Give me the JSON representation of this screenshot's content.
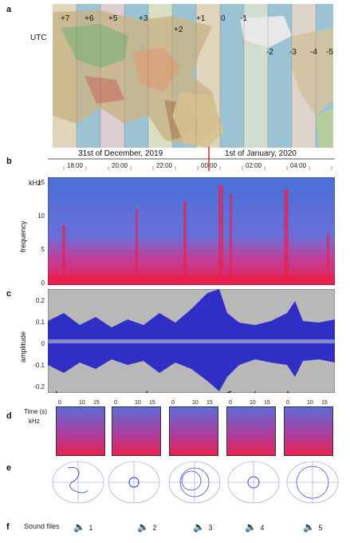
{
  "panels": {
    "a": "a",
    "b": "b",
    "c": "c",
    "d": "d",
    "e": "e",
    "f": "f"
  },
  "map": {
    "utc_label": "UTC",
    "zones_top": [
      "+7",
      "+6",
      "+5",
      "+3",
      "+1",
      "0",
      "-1"
    ],
    "zones_lower": [
      "+2",
      "-2",
      "-3",
      "-4",
      "-5"
    ]
  },
  "dates": {
    "left": "31st of December, 2019",
    "right": "1st of January, 2020"
  },
  "time_ticks": [
    "18:00",
    "20:00",
    "22:00",
    "00:00",
    "02:00",
    "04:00"
  ],
  "spectrogram": {
    "unit": "kHz",
    "ylabel": "frequency",
    "y_ticks": [
      "15",
      "10",
      "5",
      "0"
    ]
  },
  "amplitude": {
    "ylabel": "amplitude",
    "y_ticks": [
      "0.2",
      "0.1",
      "0",
      "-0.1",
      "-0.2"
    ]
  },
  "snippets": {
    "time_label": "Time (s)",
    "khz_label": "kHz",
    "tick_0": "0",
    "tick_10": "10",
    "tick_15": "15",
    "items": [
      1,
      2,
      3,
      4,
      5
    ]
  },
  "sound": {
    "label": "Sound files",
    "items": [
      "1",
      "2",
      "3",
      "4",
      "5"
    ]
  },
  "colors": {
    "spec_blue": "#4a6fd8",
    "spec_red": "#e8204f",
    "amp_blue": "#2020c8",
    "amp_bg": "#b8b8b8",
    "map_water": "#9cc3d4"
  }
}
